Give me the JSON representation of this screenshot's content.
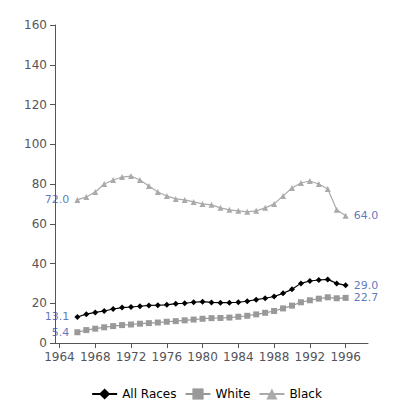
{
  "chart_data": {
    "type": "line",
    "x": [
      1966,
      1967,
      1968,
      1969,
      1970,
      1971,
      1972,
      1973,
      1974,
      1975,
      1976,
      1977,
      1978,
      1979,
      1980,
      1981,
      1982,
      1983,
      1984,
      1985,
      1986,
      1987,
      1988,
      1989,
      1990,
      1991,
      1992,
      1993,
      1994,
      1995,
      1996
    ],
    "series": [
      {
        "name": "All Races",
        "color": "#000000",
        "marker": "diamond",
        "values": [
          13.1,
          14.5,
          15.4,
          16.1,
          17.1,
          17.8,
          18.1,
          18.5,
          18.9,
          19.0,
          19.2,
          19.8,
          20.0,
          20.5,
          20.8,
          20.4,
          20.3,
          20.3,
          20.5,
          21.0,
          21.8,
          22.5,
          23.4,
          25.0,
          27.0,
          30.0,
          31.2,
          31.7,
          32.0,
          30.0,
          29.0
        ]
      },
      {
        "name": "White",
        "color": "#999999",
        "marker": "square",
        "values": [
          5.4,
          6.5,
          7.2,
          7.9,
          8.5,
          9.0,
          9.3,
          9.7,
          10.0,
          10.3,
          10.7,
          11.0,
          11.4,
          11.8,
          12.2,
          12.5,
          12.6,
          12.8,
          13.2,
          13.7,
          14.4,
          15.2,
          16.1,
          17.4,
          18.8,
          20.5,
          21.5,
          22.3,
          23.0,
          22.5,
          22.7
        ]
      },
      {
        "name": "Black",
        "color": "#aaaaaa",
        "marker": "triangle",
        "values": [
          72.0,
          73.5,
          76.0,
          80.0,
          82.0,
          83.5,
          84.0,
          82.0,
          79.0,
          76.0,
          74.0,
          72.5,
          72.0,
          71.0,
          70.0,
          69.5,
          68.0,
          67.0,
          66.5,
          66.0,
          66.5,
          68.0,
          70.0,
          74.0,
          78.0,
          80.5,
          81.5,
          80.0,
          77.5,
          67.0,
          64.0
        ]
      }
    ],
    "xlim": [
      1963.5,
      1998.5
    ],
    "xticks": [
      1964,
      1968,
      1972,
      1976,
      1980,
      1984,
      1988,
      1992,
      1996
    ],
    "ylim": [
      0,
      160
    ],
    "yticks": [
      0,
      20,
      40,
      60,
      80,
      100,
      120,
      140,
      160
    ],
    "annotations": [
      {
        "text": "13.1",
        "x": 1966,
        "y": 13.1,
        "color": "#3355aa"
      },
      {
        "text": "29.0",
        "x": 1996,
        "y": 29.0,
        "color": "#3355aa"
      },
      {
        "text": "5.4",
        "x": 1966,
        "y": 5.4,
        "color": "#3355aa"
      },
      {
        "text": "22.7",
        "x": 1996,
        "y": 22.7,
        "color": "#3355aa"
      },
      {
        "text": "72.0",
        "x": 1966,
        "y": 72.0,
        "color": "#3355aa"
      },
      {
        "text": "64.0",
        "x": 1996,
        "y": 64.0,
        "color": "#3355aa"
      }
    ],
    "grid": false,
    "legend": "bottom"
  }
}
